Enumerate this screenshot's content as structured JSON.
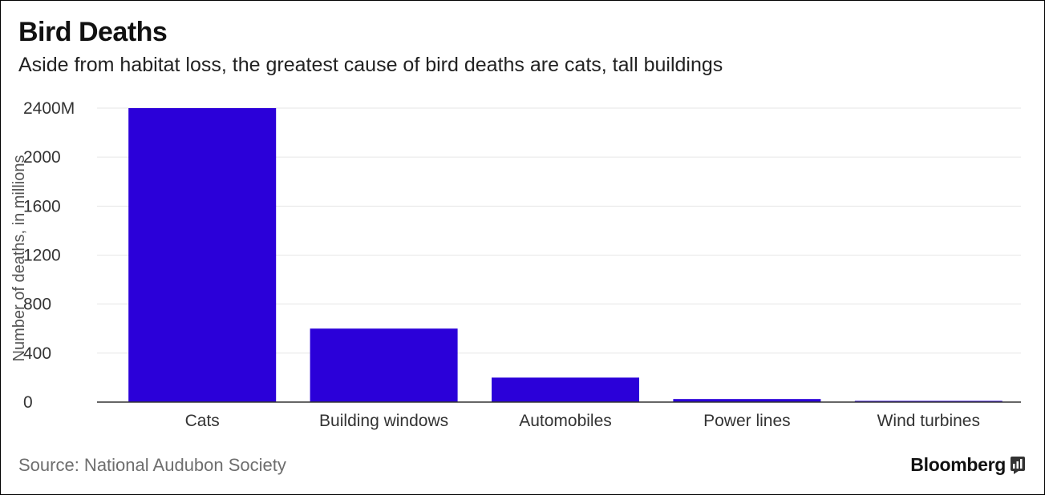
{
  "header": {
    "title": "Bird Deaths",
    "subtitle": "Aside from habitat loss, the greatest cause of bird deaths are cats, tall buildings"
  },
  "footer": {
    "source": "Source: National Audubon Society",
    "brand": "Bloomberg"
  },
  "colors": {
    "bar": "#2b00d9",
    "grid": "#e6e6e6",
    "axis": "#333333"
  },
  "chart_data": {
    "type": "bar",
    "title": "Bird Deaths",
    "subtitle": "Aside from habitat loss, the greatest cause of bird deaths are cats, tall buildings",
    "xlabel": "",
    "ylabel": "Number of deaths, in millions",
    "categories": [
      "Cats",
      "Building windows",
      "Automobiles",
      "Power lines",
      "Wind turbines"
    ],
    "values": [
      2400,
      600,
      200,
      25,
      0.5
    ],
    "ylim": [
      0,
      2400
    ],
    "yticks": [
      0,
      400,
      800,
      1200,
      1600,
      2000,
      2400
    ],
    "ytick_labels": [
      "0",
      "400",
      "800",
      "1200",
      "1600",
      "2000",
      "2400M"
    ],
    "grid": true,
    "legend": "none"
  }
}
